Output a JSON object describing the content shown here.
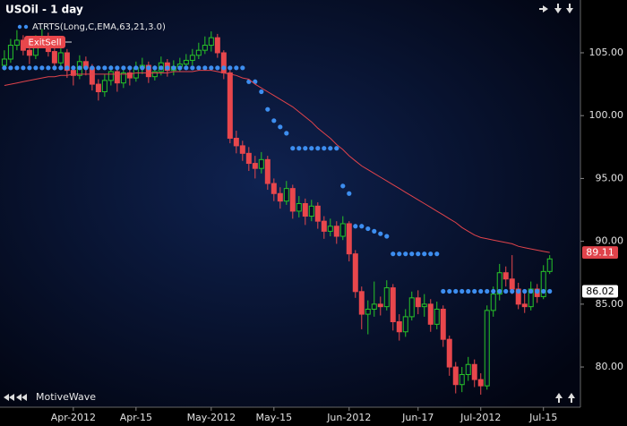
{
  "chart_data": {
    "type": "candlestick",
    "title": "USOil - 1 day",
    "annotation": "ExitSell",
    "up_color": "#28c428",
    "down_color": "#e8474c",
    "grid": false,
    "xlim": [
      -0.7,
      91.9
    ],
    "xticks": [
      {
        "value": 11,
        "label": "Apr-2012"
      },
      {
        "value": 21,
        "label": "Apr-15"
      },
      {
        "value": 33,
        "label": "May-2012"
      },
      {
        "value": 43,
        "label": "May-15"
      },
      {
        "value": 55,
        "label": "Jun-2012"
      },
      {
        "value": 66,
        "label": "Jun-17"
      },
      {
        "value": 76,
        "label": "Jul-2012"
      },
      {
        "value": 86,
        "label": "Jul-15"
      }
    ],
    "ylim": [
      76.8,
      109.2
    ],
    "yticks": [
      {
        "value": 80,
        "label": "80.00"
      },
      {
        "value": 85,
        "label": "85.00"
      },
      {
        "value": 90,
        "label": "90.00"
      },
      {
        "value": 95,
        "label": "95.00"
      },
      {
        "value": 100,
        "label": "100.00"
      },
      {
        "value": 105,
        "label": "105.00"
      }
    ],
    "open": [
      104.0,
      104.5,
      105.6,
      106.0,
      105.2,
      104.8,
      105.9,
      106.3,
      105.1,
      104.2,
      105.0,
      103.6,
      103.2,
      104.3,
      103.8,
      102.5,
      101.9,
      102.8,
      103.5,
      102.6,
      103.4,
      103.0,
      103.8,
      104.0,
      103.1,
      103.5,
      104.2,
      103.6,
      103.9,
      104.1,
      104.4,
      104.8,
      105.2,
      105.6,
      106.2,
      105.0,
      103.4,
      98.2,
      97.6,
      97.0,
      96.2,
      95.8,
      96.5,
      94.6,
      93.8,
      93.2,
      94.2,
      92.4,
      93.0,
      92.0,
      92.8,
      91.6,
      90.8,
      91.2,
      90.4,
      91.4,
      89.0,
      86.0,
      84.2,
      84.6,
      85.0,
      84.8,
      86.3,
      83.6,
      82.8,
      84.0,
      85.5,
      84.8,
      85.0,
      83.4,
      84.6,
      82.2,
      80.0,
      78.6,
      79.4,
      80.2,
      79.0,
      78.5,
      84.5,
      85.8,
      87.5,
      87.0,
      86.2,
      85.0,
      84.8,
      86.2,
      85.6,
      87.6
    ],
    "high": [
      105.2,
      106.1,
      106.8,
      106.4,
      105.6,
      106.4,
      106.9,
      106.6,
      105.4,
      105.5,
      105.3,
      104.0,
      104.8,
      104.7,
      104.1,
      102.9,
      103.3,
      104.0,
      103.8,
      103.9,
      103.8,
      104.3,
      104.6,
      104.3,
      104.0,
      104.7,
      104.5,
      104.4,
      104.6,
      104.9,
      105.3,
      105.8,
      106.3,
      106.7,
      106.5,
      105.2,
      103.6,
      98.8,
      98.0,
      97.5,
      96.8,
      97.1,
      96.8,
      95.0,
      94.3,
      94.8,
      94.5,
      93.6,
      93.4,
      93.3,
      93.1,
      92.0,
      91.8,
      91.6,
      92.0,
      91.6,
      89.3,
      86.4,
      85.3,
      86.8,
      85.6,
      86.9,
      86.6,
      84.2,
      84.6,
      86.0,
      86.1,
      85.8,
      85.4,
      85.2,
      84.9,
      82.5,
      80.4,
      80.0,
      80.8,
      80.6,
      79.5,
      84.9,
      86.4,
      88.2,
      88.0,
      88.9,
      86.7,
      86.2,
      86.8,
      86.6,
      88.1,
      88.9
    ],
    "low": [
      103.6,
      104.2,
      105.2,
      104.8,
      104.1,
      104.5,
      105.5,
      104.7,
      103.6,
      103.8,
      103.0,
      102.4,
      102.9,
      103.2,
      102.0,
      101.2,
      101.5,
      102.4,
      101.9,
      102.2,
      102.4,
      102.7,
      103.3,
      102.6,
      102.8,
      103.2,
      103.1,
      103.2,
      103.5,
      103.7,
      104.0,
      104.5,
      104.9,
      105.1,
      104.6,
      102.9,
      97.8,
      97.0,
      96.4,
      95.6,
      95.0,
      95.4,
      94.1,
      93.2,
      92.6,
      92.9,
      91.8,
      91.9,
      91.3,
      91.6,
      91.0,
      90.2,
      90.4,
      89.8,
      90.1,
      88.4,
      85.5,
      83.0,
      82.6,
      84.0,
      84.1,
      84.5,
      82.9,
      82.1,
      82.4,
      83.7,
      84.2,
      84.0,
      82.8,
      83.0,
      81.6,
      79.3,
      77.9,
      78.0,
      78.9,
      78.4,
      77.8,
      78.2,
      84.0,
      85.3,
      86.4,
      85.8,
      84.6,
      84.3,
      84.5,
      85.1,
      85.4,
      87.4
    ],
    "close": [
      104.5,
      105.6,
      106.0,
      105.2,
      104.8,
      105.9,
      106.3,
      105.1,
      104.2,
      105.0,
      103.6,
      103.2,
      104.3,
      103.8,
      102.5,
      101.9,
      102.8,
      103.5,
      102.6,
      103.4,
      103.0,
      103.8,
      104.0,
      103.1,
      103.5,
      104.2,
      103.6,
      103.9,
      104.1,
      104.4,
      104.8,
      105.2,
      105.6,
      106.2,
      105.0,
      103.4,
      98.2,
      97.6,
      97.0,
      96.2,
      95.8,
      96.5,
      94.6,
      93.8,
      93.2,
      94.2,
      92.4,
      93.0,
      92.0,
      92.8,
      91.6,
      90.8,
      91.2,
      90.4,
      91.4,
      89.0,
      86.0,
      84.2,
      84.6,
      85.0,
      84.8,
      86.3,
      83.6,
      82.8,
      84.0,
      85.5,
      84.8,
      85.0,
      83.4,
      84.6,
      82.2,
      80.0,
      78.6,
      79.4,
      80.2,
      79.0,
      78.5,
      84.5,
      85.8,
      87.5,
      87.0,
      86.2,
      85.0,
      84.8,
      86.2,
      85.6,
      87.6,
      88.6
    ],
    "series": [
      {
        "name": "ATRTS(Long,C,EMA,63,21,3.0)",
        "style": "dots",
        "color": "#3d8ef0",
        "label_color": "#ffffff",
        "values": [
          103.8,
          103.8,
          103.8,
          103.8,
          103.8,
          103.8,
          103.8,
          103.8,
          103.8,
          103.8,
          103.8,
          103.8,
          103.8,
          103.8,
          103.8,
          103.8,
          103.8,
          103.8,
          103.8,
          103.8,
          103.8,
          103.8,
          103.8,
          103.8,
          103.8,
          103.8,
          103.8,
          103.8,
          103.8,
          103.8,
          103.8,
          103.8,
          103.8,
          103.8,
          103.8,
          103.8,
          103.8,
          103.8,
          103.8,
          102.7,
          102.7,
          101.9,
          100.5,
          99.6,
          99.1,
          98.6,
          97.4,
          97.4,
          97.4,
          97.4,
          97.4,
          97.4,
          97.4,
          97.4,
          94.4,
          93.8,
          91.2,
          91.2,
          91.0,
          90.8,
          90.6,
          90.4,
          89.0,
          89.0,
          89.0,
          89.0,
          89.0,
          89.0,
          89.0,
          89.0,
          86.02,
          86.02,
          86.02,
          86.02,
          86.02,
          86.02,
          86.02,
          86.02,
          86.02,
          86.02,
          86.02,
          86.02,
          86.02,
          86.02,
          86.02,
          86.02,
          86.02,
          86.02
        ]
      },
      {
        "style": "line",
        "color": "#e0434b",
        "label_color": "#e0434b",
        "values": [
          102.4,
          102.5,
          102.6,
          102.7,
          102.8,
          102.9,
          103.0,
          103.1,
          103.1,
          103.2,
          103.2,
          103.3,
          103.3,
          103.3,
          103.3,
          103.3,
          103.3,
          103.3,
          103.3,
          103.3,
          103.3,
          103.4,
          103.4,
          103.4,
          103.4,
          103.4,
          103.4,
          103.5,
          103.5,
          103.5,
          103.5,
          103.6,
          103.6,
          103.6,
          103.5,
          103.4,
          103.3,
          103.2,
          103.0,
          102.9,
          102.5,
          102.2,
          101.9,
          101.6,
          101.3,
          101.0,
          100.7,
          100.3,
          99.9,
          99.5,
          99.0,
          98.6,
          98.2,
          97.7,
          97.3,
          96.8,
          96.4,
          96.0,
          95.7,
          95.4,
          95.1,
          94.8,
          94.5,
          94.2,
          93.9,
          93.6,
          93.3,
          93.0,
          92.7,
          92.4,
          92.1,
          91.8,
          91.5,
          91.1,
          90.8,
          90.5,
          90.3,
          90.2,
          90.1,
          90.0,
          89.9,
          89.8,
          89.6,
          89.5,
          89.4,
          89.3,
          89.2,
          89.11
        ]
      }
    ]
  },
  "footer": {
    "brand": "MotiveWave"
  }
}
